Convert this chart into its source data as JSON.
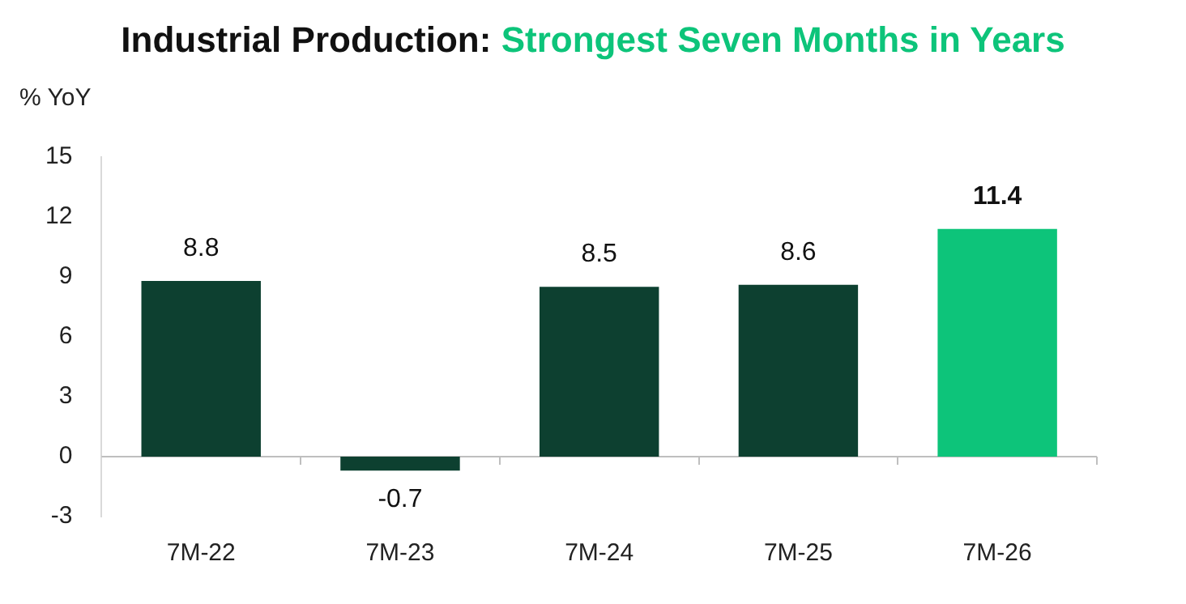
{
  "chart_data": {
    "type": "bar",
    "title": "Industrial Production:",
    "subtitle": "Strongest Seven Months in Years",
    "ylabel": "% YoY",
    "categories": [
      "7M-22",
      "7M-23",
      "7M-24",
      "7M-25",
      "7M-26"
    ],
    "values": [
      8.8,
      -0.7,
      8.5,
      8.6,
      11.4
    ],
    "colors": [
      "#0d4030",
      "#0d4030",
      "#0d4030",
      "#0d4030",
      "#0dc47a"
    ],
    "ref_lines": [
      {
        "axis": "y",
        "value": 0,
        "color": "#bfbfbf"
      }
    ],
    "ylim": [
      -3,
      15
    ],
    "yticks": [
      -3,
      0,
      3,
      6,
      9,
      12,
      15
    ],
    "grid": false,
    "legend": false,
    "data_labels": true
  }
}
